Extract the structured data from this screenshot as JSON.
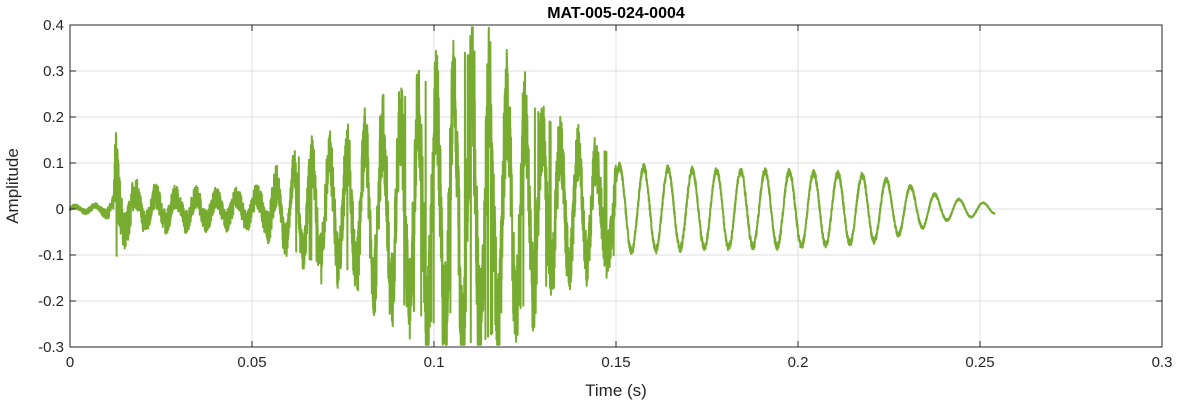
{
  "chart_data": {
    "type": "line",
    "title": "MAT-005-024-0004",
    "xlabel": "Time (s)",
    "ylabel": "Amplitude",
    "xlim": [
      0,
      0.3
    ],
    "ylim": [
      -0.3,
      0.4
    ],
    "xticks": [
      0,
      0.05,
      0.1,
      0.15,
      0.2,
      0.25,
      0.3
    ],
    "xtick_labels": [
      "0",
      "0.05",
      "0.1",
      "0.15",
      "0.2",
      "0.25",
      "0.3"
    ],
    "yticks": [
      -0.3,
      -0.2,
      -0.1,
      0,
      0.1,
      0.2,
      0.3,
      0.4
    ],
    "ytick_labels": [
      "-0.3",
      "-0.2",
      "-0.1",
      "0",
      "0.1",
      "0.2",
      "0.3",
      "0.4"
    ],
    "grid": true,
    "series": [
      {
        "color": "#77AC30",
        "x_range": [
          0,
          0.254
        ],
        "envelope": [
          [
            0.0,
            0.006
          ],
          [
            0.008,
            0.008
          ],
          [
            0.012,
            0.02
          ],
          [
            0.0125,
            0.12
          ],
          [
            0.014,
            0.06
          ],
          [
            0.02,
            0.035
          ],
          [
            0.04,
            0.03
          ],
          [
            0.05,
            0.03
          ],
          [
            0.055,
            0.05
          ],
          [
            0.06,
            0.09
          ],
          [
            0.065,
            0.12
          ],
          [
            0.075,
            0.14
          ],
          [
            0.085,
            0.19
          ],
          [
            0.095,
            0.25
          ],
          [
            0.105,
            0.3
          ],
          [
            0.112,
            0.33
          ],
          [
            0.12,
            0.27
          ],
          [
            0.13,
            0.19
          ],
          [
            0.14,
            0.14
          ],
          [
            0.15,
            0.11
          ],
          [
            0.17,
            0.1
          ],
          [
            0.2,
            0.095
          ],
          [
            0.22,
            0.085
          ],
          [
            0.23,
            0.06
          ],
          [
            0.24,
            0.03
          ],
          [
            0.254,
            0.012
          ]
        ],
        "notable_points": [
          {
            "x": 0.0125,
            "y": 0.122
          },
          {
            "x": 0.0128,
            "y": -0.102
          },
          {
            "x": 0.1125,
            "y": 0.354
          },
          {
            "x": 0.1085,
            "y": 0.34
          },
          {
            "x": 0.1125,
            "y": -0.255
          },
          {
            "x": 0.1045,
            "y": -0.225
          }
        ]
      }
    ]
  }
}
